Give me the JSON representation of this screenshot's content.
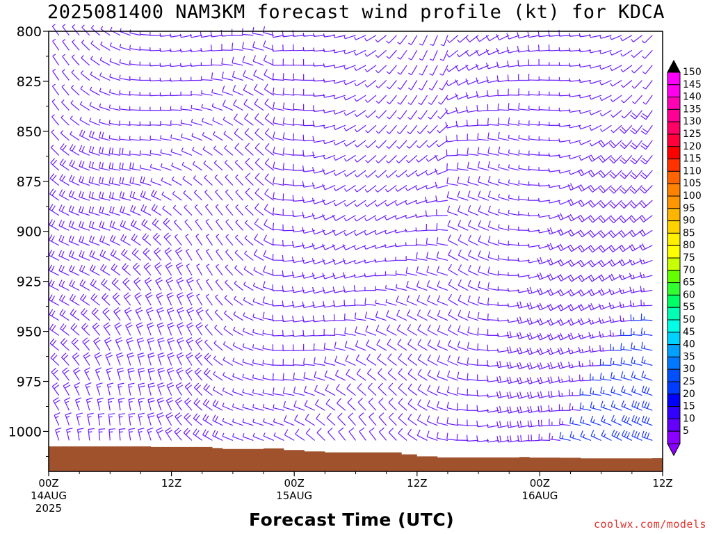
{
  "title": "2025081400 NAM3KM forecast wind profile (kt) for KDCA",
  "credit": "coolwx.com/models",
  "chart_data": {
    "type": "wind-barb-profile",
    "title": "2025081400 NAM3KM forecast wind profile (kt) for KDCA",
    "xlabel": "Forecast Time (UTC)",
    "ylabel": "",
    "units": "kt",
    "x_range_hours": [
      0,
      60
    ],
    "y_range_hpa": [
      800,
      1020
    ],
    "y_scale": "pressure (increasing downward)",
    "y_ticks": [
      800,
      825,
      850,
      875,
      900,
      925,
      950,
      975,
      1000
    ],
    "x_ticks": [
      {
        "hour": 0,
        "lines": [
          "00Z",
          "14AUG",
          "2025"
        ]
      },
      {
        "hour": 12,
        "lines": [
          "12Z"
        ]
      },
      {
        "hour": 24,
        "lines": [
          "00Z",
          "15AUG"
        ]
      },
      {
        "hour": 36,
        "lines": [
          "12Z"
        ]
      },
      {
        "hour": 48,
        "lines": [
          "00Z",
          "16AUG"
        ]
      },
      {
        "hour": 60,
        "lines": [
          "12Z"
        ]
      }
    ],
    "legend": {
      "placement": "right",
      "values": [
        "150",
        "145",
        "140",
        "135",
        "130",
        "125",
        "120",
        "115",
        "110",
        "105",
        "100",
        "95",
        "90",
        "85",
        "80",
        "75",
        "70",
        "65",
        "60",
        "55",
        "50",
        "45",
        "40",
        "35",
        "30",
        "25",
        "20",
        "15",
        "10",
        "5"
      ],
      "colors": [
        "#ff00ff",
        "#ff00ee",
        "#ff00b4",
        "#ff0096",
        "#ff0064",
        "#ff003c",
        "#ff0000",
        "#ff3200",
        "#ff6400",
        "#ff8200",
        "#ff9600",
        "#ffb400",
        "#ffd200",
        "#fff000",
        "#ffff00",
        "#c8ff00",
        "#64ff00",
        "#32ff32",
        "#00ff64",
        "#00ffb4",
        "#00ffe6",
        "#00d2ff",
        "#00a0ff",
        "#0078ff",
        "#0050ff",
        "#003cff",
        "#0000ff",
        "#3200ff",
        "#6400ff",
        "#8c00ff"
      ]
    },
    "barb_color": "#6a1bff",
    "barb_color_strong": "#1a37ff",
    "terrain_color": "#a0522d",
    "surface_pressure_hpa": [
      {
        "hour": 0,
        "p": 1007.5
      },
      {
        "hour": 6,
        "p": 1007.5
      },
      {
        "hour": 10,
        "p": 1007.8
      },
      {
        "hour": 16,
        "p": 1008.3
      },
      {
        "hour": 17,
        "p": 1008.8
      },
      {
        "hour": 21,
        "p": 1008.5
      },
      {
        "hour": 23,
        "p": 1009.3
      },
      {
        "hour": 25,
        "p": 1010.0
      },
      {
        "hour": 27,
        "p": 1010.5
      },
      {
        "hour": 34.5,
        "p": 1011.5
      },
      {
        "hour": 36,
        "p": 1012.5
      },
      {
        "hour": 38,
        "p": 1013.0
      },
      {
        "hour": 46,
        "p": 1012.8
      },
      {
        "hour": 47,
        "p": 1013.1
      },
      {
        "hour": 50,
        "p": 1013.2
      },
      {
        "hour": 52,
        "p": 1013.5
      },
      {
        "hour": 59,
        "p": 1013.4
      },
      {
        "hour": 60,
        "p": 1014.2
      }
    ]
  }
}
